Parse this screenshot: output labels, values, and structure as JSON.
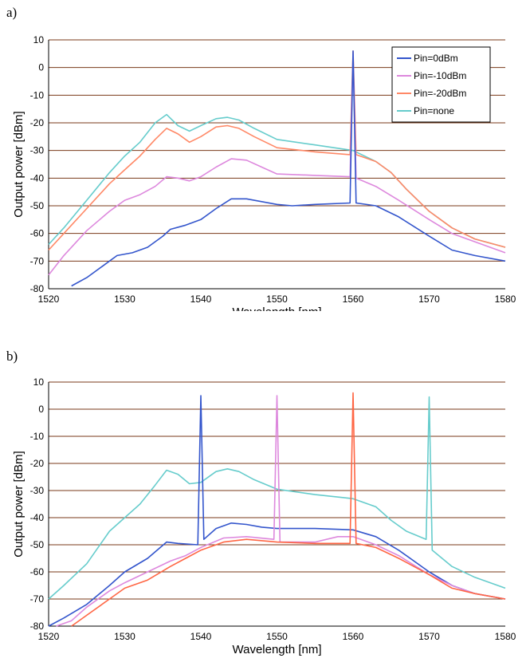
{
  "panels": {
    "a": "a)",
    "b": "b)"
  },
  "chart_data": [
    {
      "type": "line",
      "xlabel": "Wavelength [nm]",
      "ylabel": "Output power [dBm]",
      "xlim": [
        1520,
        1580
      ],
      "ylim": [
        -80,
        10
      ],
      "xticks": [
        1520,
        1530,
        1540,
        1550,
        1560,
        1570,
        1580
      ],
      "yticks": [
        10,
        0,
        -10,
        -20,
        -30,
        -40,
        -50,
        -60,
        -70,
        -80
      ],
      "grid": "horizontal",
      "legend_position": "top-right",
      "series": [
        {
          "name": "Pin=none",
          "color": "#66cccc",
          "x": [
            1520,
            1522,
            1525,
            1528,
            1530,
            1532,
            1534,
            1535.5,
            1537,
            1538.5,
            1540,
            1542,
            1543.5,
            1545,
            1547,
            1550,
            1555,
            1560,
            1563,
            1565,
            1567,
            1570,
            1573,
            1576,
            1580
          ],
          "y": [
            -64,
            -58,
            -48,
            -38,
            -32,
            -27,
            -20,
            -17,
            -21,
            -23,
            -21,
            -18.5,
            -18,
            -19,
            -22,
            -26,
            -28,
            -30,
            -34,
            -38,
            -44,
            -52,
            -58,
            -62,
            -65
          ]
        },
        {
          "name": "Pin=-20dBm",
          "color": "#ff8866",
          "x": [
            1520,
            1522,
            1525,
            1528,
            1530,
            1532,
            1534,
            1535.5,
            1537,
            1538.5,
            1540,
            1542,
            1543.5,
            1545,
            1547,
            1550,
            1555,
            1559.6,
            1560,
            1560.4,
            1563,
            1565,
            1567,
            1570,
            1573,
            1576,
            1580
          ],
          "y": [
            -66,
            -60,
            -51,
            -42,
            -37,
            -32,
            -26,
            -22,
            -24,
            -27,
            -25,
            -21.5,
            -21,
            -22,
            -25,
            -29,
            -30.5,
            -31.5,
            6,
            -31.5,
            -34,
            -38,
            -44,
            -52,
            -58,
            -62,
            -65
          ]
        },
        {
          "name": "Pin=-10dBm",
          "color": "#dd88dd",
          "x": [
            1520,
            1522,
            1525,
            1528,
            1530,
            1532,
            1534,
            1535.5,
            1537,
            1538.5,
            1540,
            1542,
            1544,
            1546,
            1548,
            1550,
            1555,
            1559.6,
            1560,
            1560.4,
            1563,
            1566,
            1570,
            1573,
            1576,
            1580
          ],
          "y": [
            -75,
            -68,
            -59,
            -52,
            -48,
            -46,
            -43,
            -39.5,
            -40,
            -41,
            -39.5,
            -36,
            -33,
            -33.5,
            -36,
            -38.5,
            -39,
            -39.5,
            5,
            -40,
            -43,
            -48,
            -55,
            -60,
            -63,
            -67
          ]
        },
        {
          "name": "Pin=0dBm",
          "color": "#3355cc",
          "x": [
            1523,
            1525,
            1527,
            1529,
            1531,
            1533,
            1535,
            1536,
            1538,
            1540,
            1542,
            1544,
            1546,
            1548,
            1550,
            1552,
            1555,
            1559.6,
            1560,
            1560.4,
            1563,
            1566,
            1570,
            1573,
            1576,
            1580
          ],
          "y": [
            -79,
            -76,
            -72,
            -68,
            -67,
            -65,
            -61,
            -58.5,
            -57,
            -55,
            -51,
            -47.5,
            -47.5,
            -48.5,
            -49.5,
            -50,
            -49.5,
            -49,
            6,
            -49,
            -50,
            -54,
            -61,
            -66,
            -68,
            -70
          ]
        }
      ]
    },
    {
      "type": "line",
      "xlabel": "Wavelength [nm]",
      "ylabel": "Output power [dBm]",
      "xlim": [
        1520,
        1580
      ],
      "ylim": [
        -80,
        10
      ],
      "xticks": [
        1520,
        1530,
        1540,
        1550,
        1560,
        1570,
        1580
      ],
      "yticks": [
        10,
        0,
        -10,
        -20,
        -30,
        -40,
        -50,
        -60,
        -70,
        -80
      ],
      "grid": "horizontal",
      "series": [
        {
          "color": "#66cccc",
          "x": [
            1520,
            1522,
            1525,
            1528,
            1530,
            1532,
            1534,
            1535.5,
            1537,
            1538.5,
            1540,
            1542,
            1543.5,
            1545,
            1547,
            1550,
            1555,
            1560,
            1563,
            1565,
            1567,
            1569.6,
            1570,
            1570.4,
            1573,
            1576,
            1580
          ],
          "y": [
            -70,
            -65,
            -57,
            -45,
            -40,
            -35,
            -28,
            -22.5,
            -24,
            -27.5,
            -27,
            -23,
            -22,
            -23,
            -26,
            -29.5,
            -31.5,
            -33,
            -36,
            -41,
            -45,
            -48,
            4.5,
            -52,
            -58,
            -62,
            -66
          ]
        },
        {
          "color": "#3355cc",
          "x": [
            1520,
            1522,
            1525,
            1528,
            1530,
            1533,
            1535.5,
            1537,
            1539.6,
            1540,
            1540.4,
            1542,
            1544,
            1546,
            1548,
            1550,
            1555,
            1560,
            1563,
            1566,
            1570,
            1573,
            1576,
            1580
          ],
          "y": [
            -80,
            -77,
            -72,
            -65,
            -60,
            -55,
            -49,
            -49.5,
            -50,
            5,
            -48,
            -44,
            -42,
            -42.5,
            -43.5,
            -44,
            -44,
            -44.5,
            -47,
            -52,
            -60,
            -65,
            -68,
            -70
          ]
        },
        {
          "color": "#dd88dd",
          "x": [
            1521,
            1523,
            1525,
            1528,
            1530,
            1533,
            1536,
            1538,
            1540,
            1543,
            1546,
            1549.6,
            1550,
            1550.4,
            1555,
            1558,
            1560,
            1563,
            1566,
            1570,
            1573,
            1576,
            1580
          ],
          "y": [
            -80,
            -78,
            -73,
            -67,
            -64,
            -60,
            -56,
            -54,
            -51,
            -47.5,
            -47,
            -48,
            5,
            -49,
            -49,
            -47,
            -47,
            -50,
            -54,
            -61,
            -65,
            -68,
            -70
          ]
        },
        {
          "color": "#ff6644",
          "x": [
            1523,
            1525,
            1528,
            1530,
            1533,
            1536,
            1538,
            1540,
            1543,
            1546,
            1550,
            1555,
            1559.6,
            1560,
            1560.4,
            1563,
            1566,
            1570,
            1573,
            1576,
            1580
          ],
          "y": [
            -80,
            -76,
            -70,
            -66,
            -63,
            -58,
            -55,
            -52,
            -49,
            -48,
            -49,
            -49.5,
            -49.5,
            6,
            -49.5,
            -51,
            -55,
            -61,
            -66,
            -68,
            -70
          ]
        }
      ]
    }
  ]
}
